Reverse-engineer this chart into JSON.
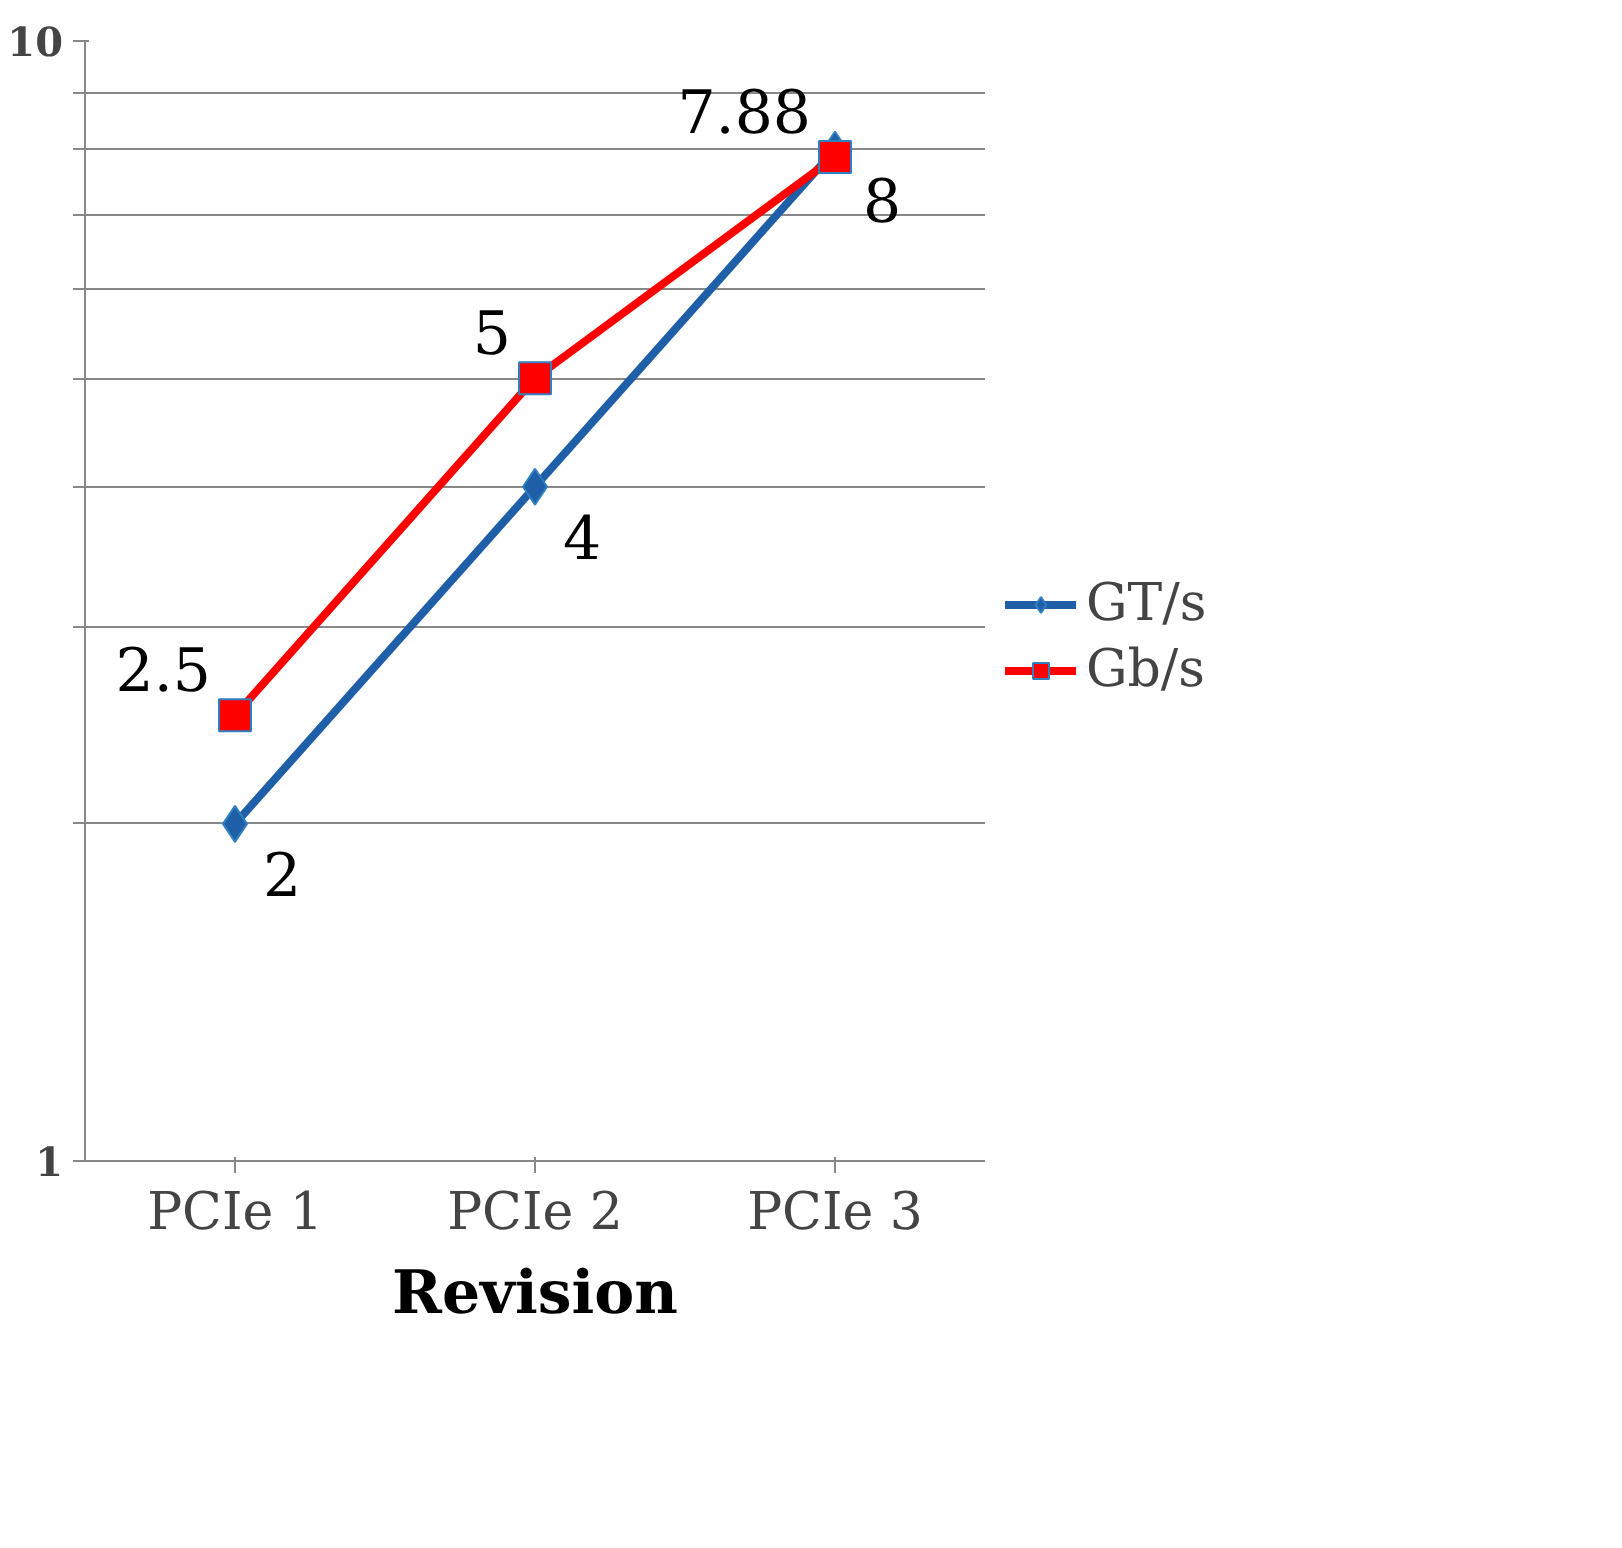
{
  "chart_data": {
    "type": "line",
    "xlabel": "Revision",
    "categories": [
      "PCIe 1",
      "PCIe 2",
      "PCIe 3"
    ],
    "series": [
      {
        "name": "GT/s",
        "color": "#1f5fa8",
        "marker": "diamond",
        "values": [
          2,
          4,
          8
        ]
      },
      {
        "name": "Gb/s",
        "color": "#ff0000",
        "marker": "square",
        "values": [
          2.5,
          5,
          7.88
        ]
      }
    ],
    "log": "y",
    "ylim": [
      1,
      10
    ],
    "yticks": [
      1,
      {
        "value": 2,
        "label": null
      },
      {
        "value": 3,
        "label": null
      },
      {
        "value": 4,
        "label": null
      },
      {
        "value": 5,
        "label": null
      },
      {
        "value": 6,
        "label": null
      },
      {
        "value": 7,
        "label": null
      },
      {
        "value": 8,
        "label": null
      },
      {
        "value": 9,
        "label": null
      },
      10
    ],
    "grid": "y",
    "legend": "right",
    "data_labels": true
  }
}
